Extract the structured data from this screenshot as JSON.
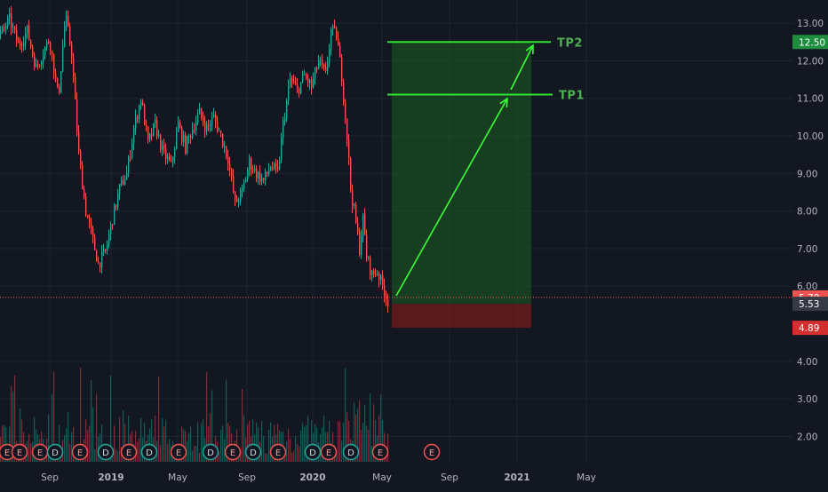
{
  "colors": {
    "background": "#131722",
    "grid": "#1f2333",
    "up": "#26a69a",
    "down": "#ef5350",
    "target_zone": "#1b5e20",
    "stop_zone": "#8b1a1a",
    "target_line": "#32e432",
    "arrow": "#39ff39",
    "tp_text": "#4caf50",
    "axis_text": "#b2b5be"
  },
  "chart_data": {
    "type": "candlestick",
    "y_axis": {
      "position": "right",
      "ticks": [
        "13.00",
        "12.00",
        "11.00",
        "10.00",
        "9.00",
        "8.00",
        "7.00",
        "6.00",
        "4.00",
        "3.00",
        "2.00"
      ],
      "tick_values": [
        13,
        12,
        11,
        10,
        9,
        8,
        7,
        6,
        4,
        3,
        2
      ],
      "range": [
        1.2,
        13.5
      ]
    },
    "x_axis": {
      "labels": [
        "Sep",
        "2019",
        "May",
        "Sep",
        "2020",
        "May",
        "Sep",
        "2021",
        "May"
      ],
      "bold": [
        "2019",
        "2020",
        "2021"
      ]
    },
    "price_path": [
      [
        0,
        12.7
      ],
      [
        10,
        13.1
      ],
      [
        20,
        12.4
      ],
      [
        30,
        12.8
      ],
      [
        40,
        11.8
      ],
      [
        55,
        12.6
      ],
      [
        65,
        11.0
      ],
      [
        73,
        13.2
      ],
      [
        80,
        12.2
      ],
      [
        88,
        9.5
      ],
      [
        96,
        8.0
      ],
      [
        104,
        7.2
      ],
      [
        110,
        6.6
      ],
      [
        118,
        6.9
      ],
      [
        126,
        7.8
      ],
      [
        134,
        8.6
      ],
      [
        142,
        9.0
      ],
      [
        150,
        10.2
      ],
      [
        158,
        11.0
      ],
      [
        166,
        9.8
      ],
      [
        174,
        10.3
      ],
      [
        182,
        9.6
      ],
      [
        192,
        9.2
      ],
      [
        200,
        10.3
      ],
      [
        208,
        9.7
      ],
      [
        216,
        10.2
      ],
      [
        224,
        10.6
      ],
      [
        232,
        10.2
      ],
      [
        240,
        10.5
      ],
      [
        248,
        10.0
      ],
      [
        256,
        9.4
      ],
      [
        264,
        8.2
      ],
      [
        272,
        8.5
      ],
      [
        280,
        9.3
      ],
      [
        288,
        9.0
      ],
      [
        296,
        8.8
      ],
      [
        304,
        9.2
      ],
      [
        312,
        9.0
      ],
      [
        318,
        10.3
      ],
      [
        326,
        11.5
      ],
      [
        334,
        11.2
      ],
      [
        342,
        11.6
      ],
      [
        350,
        11.3
      ],
      [
        358,
        12.0
      ],
      [
        366,
        11.6
      ],
      [
        372,
        12.8
      ],
      [
        378,
        12.7
      ],
      [
        384,
        11.6
      ],
      [
        390,
        10.0
      ],
      [
        394,
        8.6
      ],
      [
        398,
        8.0
      ],
      [
        404,
        7.0
      ],
      [
        408,
        7.8
      ],
      [
        412,
        6.8
      ],
      [
        418,
        6.3
      ],
      [
        424,
        6.4
      ],
      [
        430,
        6.0
      ],
      [
        436,
        5.6
      ]
    ],
    "volume_max_height": 160,
    "earnings_markers": [
      {
        "x": 8,
        "label": "E",
        "kind": "earnings"
      },
      {
        "x": 22,
        "label": "E",
        "kind": "earnings"
      },
      {
        "x": 45,
        "label": "E",
        "kind": "earnings"
      },
      {
        "x": 62,
        "label": "D",
        "kind": "dividend"
      },
      {
        "x": 90,
        "label": "E",
        "kind": "earnings"
      },
      {
        "x": 119,
        "label": "D",
        "kind": "dividend"
      },
      {
        "x": 145,
        "label": "E",
        "kind": "earnings"
      },
      {
        "x": 168,
        "label": "D",
        "kind": "dividend"
      },
      {
        "x": 201,
        "label": "E",
        "kind": "earnings"
      },
      {
        "x": 237,
        "label": "D",
        "kind": "dividend"
      },
      {
        "x": 262,
        "label": "E",
        "kind": "earnings"
      },
      {
        "x": 285,
        "label": "D",
        "kind": "dividend"
      },
      {
        "x": 313,
        "label": "E",
        "kind": "earnings"
      },
      {
        "x": 352,
        "label": "D",
        "kind": "dividend"
      },
      {
        "x": 370,
        "label": "E",
        "kind": "earnings"
      },
      {
        "x": 395,
        "label": "D",
        "kind": "dividend"
      },
      {
        "x": 428,
        "label": "E",
        "kind": "earnings"
      },
      {
        "x": 486,
        "label": "E",
        "kind": "earnings_future"
      }
    ],
    "position": {
      "entry": 5.53,
      "target": 12.5,
      "stop": 4.89,
      "current": 5.7,
      "tp1": 11.1,
      "tp2": 12.5
    },
    "price_badges": [
      {
        "label": "12.50",
        "value": 12.5,
        "kind": "target"
      },
      {
        "label": "5.70",
        "value": 5.7,
        "kind": "current"
      },
      {
        "label": "5.53",
        "value": 5.53,
        "kind": "entry"
      },
      {
        "label": "4.89",
        "value": 4.89,
        "kind": "stop"
      }
    ],
    "annotations": [
      {
        "label": "TP2",
        "price": 12.5
      },
      {
        "label": "TP1",
        "price": 11.1
      }
    ]
  }
}
